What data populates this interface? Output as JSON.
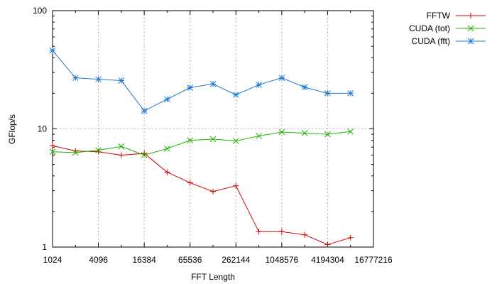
{
  "chart_data": {
    "type": "line",
    "xlabel": "FFT Length",
    "ylabel": "GFlop/s",
    "x_scale": "log2",
    "y_scale": "log10",
    "xlim": [
      1024,
      16777216
    ],
    "ylim": [
      1,
      100
    ],
    "grid": true,
    "legend_position": "outside-right-top",
    "x_tick_labels": [
      "1024",
      "4096",
      "16384",
      "65536",
      "262144",
      "1048576",
      "4194304",
      "16777216"
    ],
    "x_tick_values": [
      1024,
      4096,
      16384,
      65536,
      262144,
      1048576,
      4194304,
      16777216
    ],
    "y_tick_labels": [
      "1",
      "10",
      "100"
    ],
    "y_tick_values": [
      1,
      10,
      100
    ],
    "x": [
      1024,
      2048,
      4096,
      8192,
      16384,
      32768,
      65536,
      131072,
      262144,
      524288,
      1048576,
      2097152,
      4194304,
      8388608
    ],
    "series": [
      {
        "name": "FFTW",
        "color": "#d40000",
        "marker": "plus",
        "values": [
          7.2,
          6.5,
          6.4,
          6.0,
          6.2,
          4.3,
          3.5,
          2.95,
          3.3,
          1.35,
          1.35,
          1.27,
          1.05,
          1.2
        ]
      },
      {
        "name": "CUDA (tot)",
        "color": "#20b000",
        "marker": "cross",
        "values": [
          6.4,
          6.3,
          6.6,
          7.1,
          6.0,
          6.8,
          8.0,
          8.2,
          7.9,
          8.7,
          9.4,
          9.2,
          9.0,
          9.5
        ]
      },
      {
        "name": "CUDA (fft)",
        "color": "#1e78d0",
        "marker": "star",
        "values": [
          46,
          27,
          26.3,
          25.6,
          14.2,
          17.8,
          22.3,
          24,
          19.4,
          23.6,
          27,
          22.5,
          20,
          20
        ]
      }
    ]
  }
}
